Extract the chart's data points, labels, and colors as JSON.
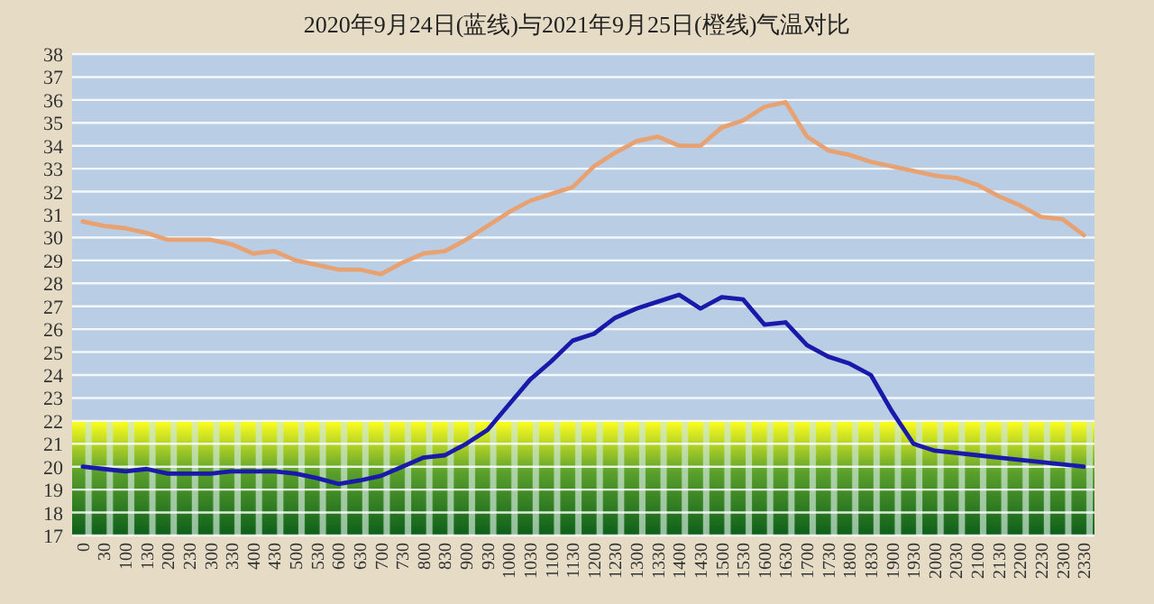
{
  "chart_data": {
    "type": "line",
    "title": "2020年9月24日(蓝线)与2021年9月25日(橙线)气温对比",
    "categories": [
      "0",
      "30",
      "100",
      "130",
      "200",
      "230",
      "300",
      "330",
      "400",
      "430",
      "500",
      "530",
      "600",
      "630",
      "700",
      "730",
      "800",
      "830",
      "900",
      "930",
      "1000",
      "1030",
      "1100",
      "1130",
      "1200",
      "1230",
      "1300",
      "1330",
      "1400",
      "1430",
      "1500",
      "1530",
      "1600",
      "1630",
      "1700",
      "1730",
      "1800",
      "1830",
      "1900",
      "1930",
      "2000",
      "2030",
      "2100",
      "2130",
      "2200",
      "2230",
      "2300",
      "2330"
    ],
    "series": [
      {
        "color": "#e8a272",
        "values": [
          30.7,
          30.5,
          30.4,
          30.2,
          29.9,
          29.9,
          29.9,
          29.7,
          29.3,
          29.4,
          29.0,
          28.8,
          28.6,
          28.6,
          28.4,
          28.9,
          29.3,
          29.4,
          29.9,
          30.5,
          31.1,
          31.6,
          31.9,
          32.2,
          33.1,
          33.7,
          34.2,
          34.4,
          34.0,
          34.0,
          34.8,
          35.1,
          35.7,
          35.9,
          34.4,
          33.8,
          33.6,
          33.3,
          33.1,
          32.9,
          32.7,
          32.6,
          32.3,
          31.8,
          31.4,
          30.9,
          30.8,
          30.1
        ]
      },
      {
        "color": "#1a1aaa",
        "values": [
          20.0,
          19.9,
          19.8,
          19.9,
          19.7,
          19.7,
          19.7,
          19.8,
          19.8,
          19.8,
          19.7,
          19.5,
          19.25,
          19.4,
          19.6,
          20.0,
          20.4,
          20.5,
          21.0,
          21.6,
          22.7,
          23.8,
          24.6,
          25.5,
          25.8,
          26.5,
          26.9,
          27.2,
          27.5,
          26.9,
          27.4,
          27.3,
          26.2,
          26.3,
          25.3,
          24.8,
          24.5,
          24.0,
          22.4,
          21.0,
          20.7,
          20.6,
          20.5,
          20.4,
          20.3,
          20.2,
          20.1,
          20.0
        ]
      }
    ],
    "ylim": [
      17,
      38
    ],
    "yticks": [
      17,
      18,
      19,
      20,
      21,
      22,
      23,
      24,
      25,
      26,
      27,
      28,
      29,
      30,
      31,
      32,
      33,
      34,
      35,
      36,
      37,
      38
    ],
    "grid": "y",
    "bands": [
      {
        "axis": "y",
        "from": 17,
        "to": 22,
        "color": "#5aa02c"
      }
    ]
  }
}
